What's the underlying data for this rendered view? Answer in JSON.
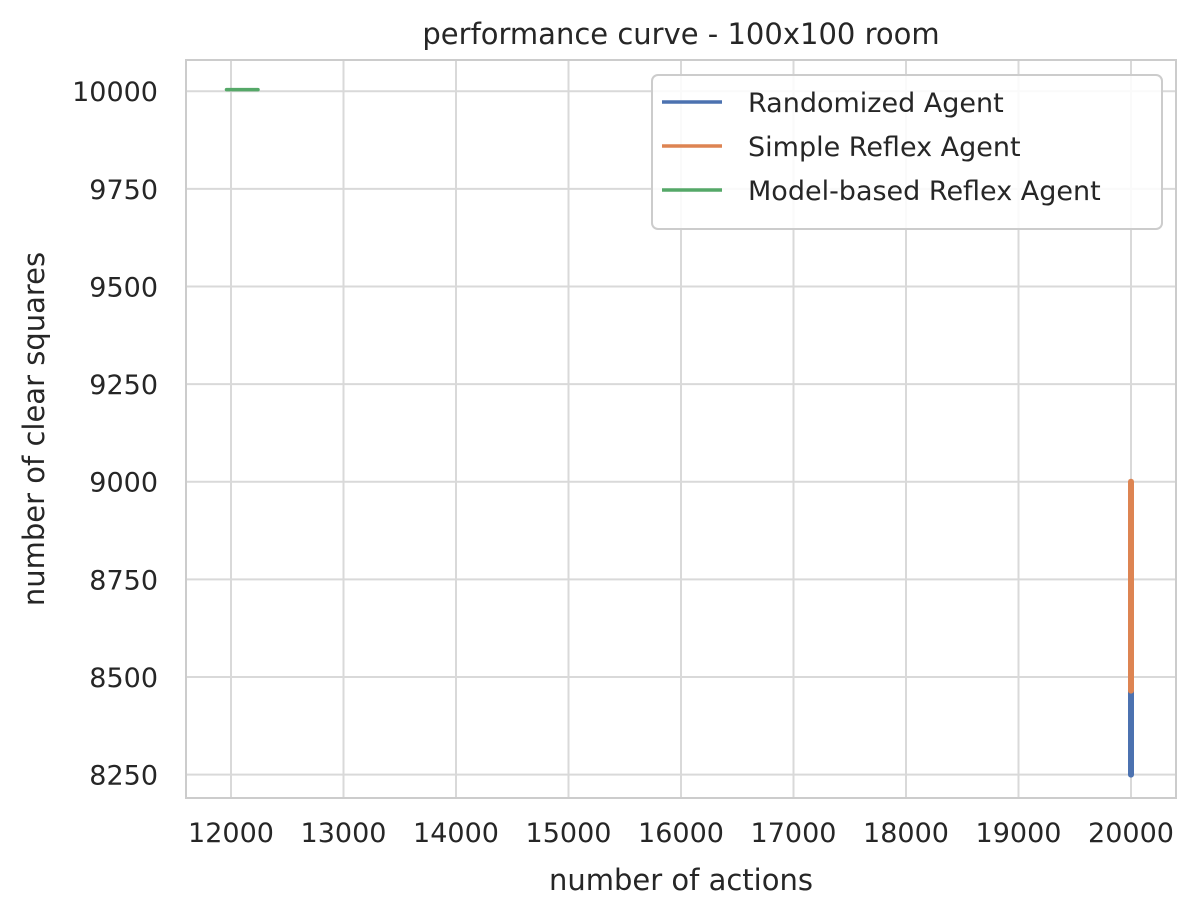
{
  "chart_data": {
    "type": "line",
    "title": "performance curve - 100x100 room",
    "xlabel": "number of actions",
    "ylabel": "number of clear squares",
    "xlim": [
      11600,
      20400
    ],
    "ylim": [
      8190,
      10080
    ],
    "xticks": [
      12000,
      13000,
      14000,
      15000,
      16000,
      17000,
      18000,
      19000,
      20000
    ],
    "yticks": [
      8250,
      8500,
      8750,
      9000,
      9250,
      9500,
      9750,
      10000
    ],
    "grid": true,
    "legend_position": "top-right",
    "series": [
      {
        "name": "Randomized Agent",
        "color": "#4c72b0",
        "x": [
          20000,
          20000
        ],
        "y": [
          8250,
          8465
        ]
      },
      {
        "name": "Simple Reflex Agent",
        "color": "#dd8452",
        "x": [
          20000,
          20000
        ],
        "y": [
          8465,
          9000
        ]
      },
      {
        "name": "Model-based Reflex Agent",
        "color": "#55a868",
        "x": [
          11960,
          12240
        ],
        "y": [
          10004,
          10004
        ]
      }
    ]
  }
}
